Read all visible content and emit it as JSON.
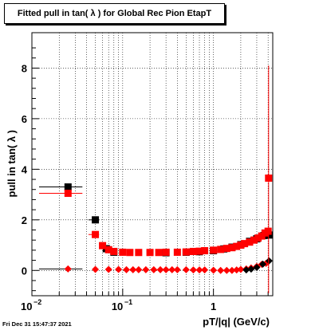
{
  "chart_data": {
    "type": "scatter",
    "title": "Fitted pull in tan( λ ) for Global Rec Pion EtapT",
    "xlabel": "pT/|q| (GeV/c)",
    "ylabel": "pull in tan( λ )",
    "x_scale": "log",
    "xlim": [
      0.01,
      4.5
    ],
    "ylim": [
      -1.0,
      9.4
    ],
    "grid": true,
    "y_ticks": [
      0,
      2,
      4,
      6,
      8
    ],
    "x_tick_labels": [
      {
        "value": 0.01,
        "base": "10",
        "exp": "−2"
      },
      {
        "value": 0.1,
        "base": "10",
        "exp": "−1"
      },
      {
        "value": 1,
        "base": "1",
        "exp": ""
      }
    ],
    "series": [
      {
        "color": "#000000",
        "marker": "square",
        "x": [
          0.025,
          0.05,
          0.066,
          0.08,
          0.3,
          0.5,
          0.7,
          1.0,
          1.3,
          1.6,
          2.0,
          2.5,
          3.0,
          3.6,
          4.1
        ],
        "y": [
          3.3,
          2.0,
          0.86,
          0.72,
          0.7,
          0.72,
          0.74,
          0.78,
          0.85,
          0.92,
          1.02,
          1.15,
          1.25,
          1.38,
          1.4
        ]
      },
      {
        "color": "#ff0000",
        "marker": "square",
        "x": [
          0.025,
          0.05,
          0.06,
          0.07,
          0.08,
          0.1,
          0.12,
          0.15,
          0.2,
          0.25,
          0.3,
          0.4,
          0.5,
          0.6,
          0.7,
          0.8,
          1.0,
          1.2,
          1.4,
          1.6,
          1.8,
          2.0,
          2.2,
          2.5,
          2.8,
          3.1,
          3.4,
          3.7,
          4.0
        ],
        "y": [
          3.05,
          1.42,
          0.98,
          0.82,
          0.75,
          0.72,
          0.71,
          0.71,
          0.71,
          0.71,
          0.72,
          0.72,
          0.73,
          0.75,
          0.76,
          0.78,
          0.8,
          0.83,
          0.87,
          0.9,
          0.95,
          1.0,
          1.06,
          1.12,
          1.2,
          1.28,
          1.36,
          1.48,
          1.55
        ]
      },
      {
        "color": "#ff0000",
        "marker": "diamond",
        "x": [
          0.025,
          0.05,
          0.07,
          0.09,
          0.11,
          0.13,
          0.15,
          0.18,
          0.22,
          0.26,
          0.3,
          0.35,
          0.4,
          0.5,
          0.6,
          0.7,
          0.8,
          1.0,
          1.2,
          1.4,
          1.6,
          1.8,
          2.0,
          2.3,
          2.6,
          3.0,
          3.4,
          3.8
        ],
        "y": [
          0.06,
          0.04,
          0.04,
          0.04,
          0.03,
          0.03,
          0.03,
          0.03,
          0.03,
          0.03,
          0.03,
          0.03,
          0.03,
          0.03,
          0.02,
          0.02,
          0.02,
          0.01,
          0.0,
          0.0,
          0.0,
          0.02,
          0.04,
          0.06,
          0.1,
          0.16,
          0.24,
          0.28
        ]
      },
      {
        "color": "#000000",
        "marker": "diamond",
        "x": [
          2.3,
          2.6,
          3.0,
          3.5,
          4.1
        ],
        "y": [
          0.02,
          0.05,
          0.12,
          0.25,
          0.38
        ]
      }
    ],
    "outlier": {
      "x": 4.05,
      "y": 3.65,
      "color": "#ff0000",
      "y_low": -0.9,
      "y_high": 8.1
    }
  },
  "timestamp": "Fri Dec 31 15:47:37 2021"
}
